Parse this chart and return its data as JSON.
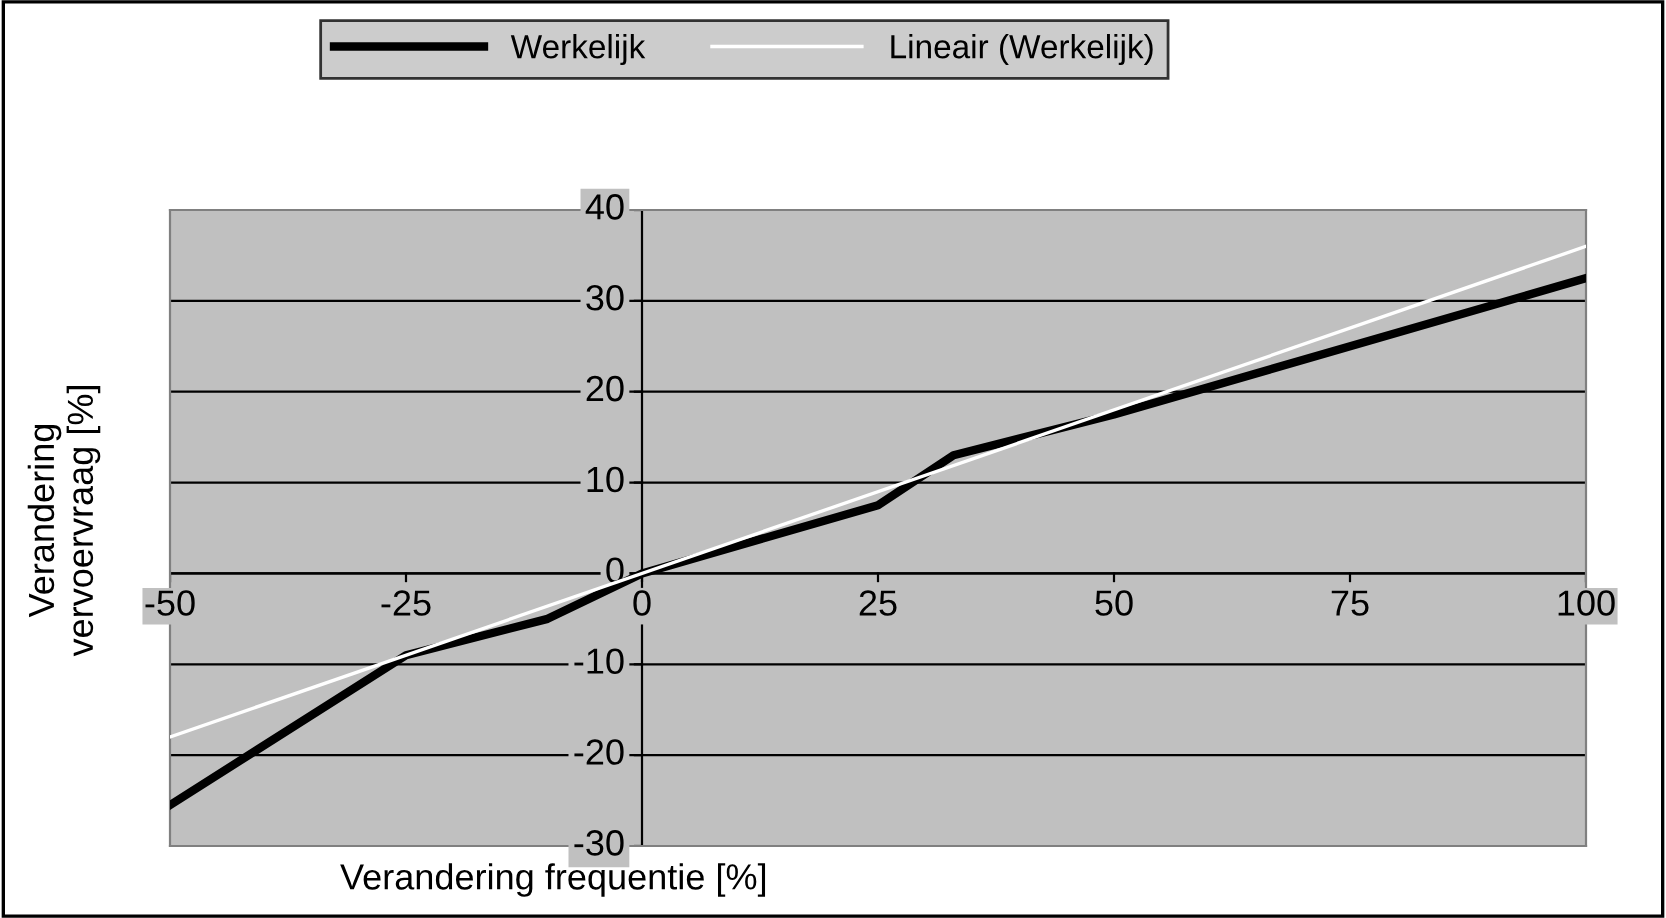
{
  "chart_data": {
    "type": "line",
    "xlabel": "Verandering frequentie [%]",
    "ylabel": "Verandering vervoervraag [%]",
    "series": [
      {
        "name": "Werkelijk",
        "color": "#000000",
        "x": [
          -50,
          -25,
          -10,
          0,
          25,
          33,
          50,
          100
        ],
        "values": [
          -25.5,
          -9,
          -5,
          0,
          7.5,
          13,
          17.5,
          32.5
        ]
      },
      {
        "name": "Lineair (Werkelijk)",
        "color": "#ffffff",
        "x": [
          -50,
          100
        ],
        "values": [
          -18,
          36
        ]
      }
    ],
    "xlim": [
      -50,
      100
    ],
    "xticks": [
      -50,
      -25,
      0,
      25,
      50,
      75,
      100
    ],
    "ylim": [
      -30,
      40
    ],
    "yticks": [
      -30,
      -20,
      -10,
      0,
      10,
      20,
      30,
      40
    ],
    "grid": "y",
    "legend": "top",
    "marker": "none",
    "line_style": "solid"
  }
}
